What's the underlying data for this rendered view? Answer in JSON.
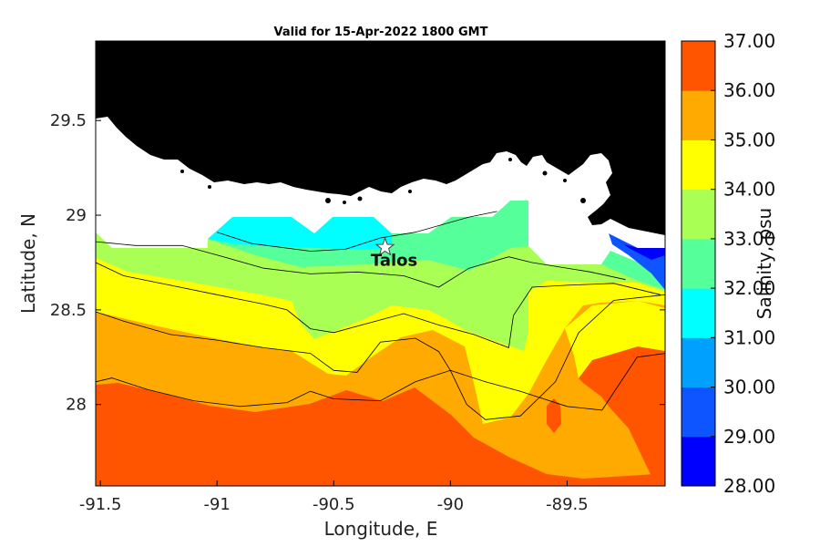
{
  "chart_data": {
    "type": "heatmap",
    "title": "Valid for 15-Apr-2022 1800 GMT",
    "xlabel": "Longitude, E",
    "ylabel": "Latitude, N",
    "xlim": [
      -91.52,
      -89.08
    ],
    "ylim": [
      27.57,
      29.92
    ],
    "x_ticks": [
      -91.5,
      -91,
      -90.5,
      -90,
      -89.5
    ],
    "x_tick_labels": [
      "-91.5",
      "-91",
      "-90.5",
      "-90",
      "-89.5"
    ],
    "y_ticks": [
      28,
      28.5,
      29,
      29.5
    ],
    "y_tick_labels": [
      "28",
      "28.5",
      "29",
      "29.5"
    ],
    "colorbar": {
      "label": "Salinity, psu",
      "min": 28,
      "max": 37,
      "tick_labels": [
        "37.00",
        "36.00",
        "35.00",
        "34.00",
        "33.00",
        "32.00",
        "31.00",
        "30.00",
        "29.00",
        "28.00"
      ],
      "colors": [
        "#0000ff",
        "#0f55ff",
        "#00a0ff",
        "#00ffff",
        "#55ff99",
        "#aaff55",
        "#ffff00",
        "#ffaa00",
        "#ff5500"
      ]
    },
    "land_color": "#000000",
    "annotation": {
      "label": "Talos",
      "marker": "star",
      "lon": -90.28,
      "lat": 28.83
    },
    "contour_levels": [
      {
        "level": 36,
        "points": [
          [
            -91.52,
            28.12
          ],
          [
            -91.45,
            28.14
          ],
          [
            -91.3,
            28.08
          ],
          [
            -91.1,
            28.02
          ],
          [
            -90.9,
            27.99
          ],
          [
            -90.7,
            28.01
          ],
          [
            -90.6,
            28.07
          ],
          [
            -90.5,
            28.03
          ],
          [
            -90.3,
            28.02
          ],
          [
            -90.15,
            28.12
          ],
          [
            -90.0,
            28.18
          ],
          [
            -89.85,
            28.12
          ],
          [
            -89.7,
            28.07
          ],
          [
            -89.5,
            27.99
          ],
          [
            -89.35,
            27.97
          ],
          [
            -89.2,
            28.25
          ],
          [
            -89.08,
            28.27
          ]
        ]
      },
      {
        "level": 35,
        "points": [
          [
            -91.52,
            28.49
          ],
          [
            -91.4,
            28.44
          ],
          [
            -91.2,
            28.37
          ],
          [
            -91.0,
            28.34
          ],
          [
            -90.8,
            28.3
          ],
          [
            -90.6,
            28.27
          ],
          [
            -90.5,
            28.18
          ],
          [
            -90.4,
            28.17
          ],
          [
            -90.3,
            28.33
          ],
          [
            -90.15,
            28.35
          ],
          [
            -90.05,
            28.28
          ],
          [
            -90.0,
            28.18
          ],
          [
            -89.93,
            28.0
          ],
          [
            -89.85,
            27.92
          ],
          [
            -89.7,
            27.94
          ],
          [
            -89.55,
            28.12
          ],
          [
            -89.45,
            28.38
          ],
          [
            -89.3,
            28.55
          ],
          [
            -89.08,
            28.58
          ]
        ]
      },
      {
        "level": 34,
        "points": [
          [
            -91.52,
            28.75
          ],
          [
            -91.4,
            28.68
          ],
          [
            -91.2,
            28.63
          ],
          [
            -91.0,
            28.58
          ],
          [
            -90.8,
            28.53
          ],
          [
            -90.7,
            28.5
          ],
          [
            -90.6,
            28.4
          ],
          [
            -90.5,
            28.38
          ],
          [
            -90.35,
            28.43
          ],
          [
            -90.2,
            28.48
          ],
          [
            -90.05,
            28.42
          ],
          [
            -89.9,
            28.37
          ],
          [
            -89.75,
            28.3
          ],
          [
            -89.73,
            28.47
          ],
          [
            -89.65,
            28.62
          ],
          [
            -89.5,
            28.63
          ],
          [
            -89.3,
            28.64
          ],
          [
            -89.1,
            28.58
          ]
        ]
      },
      {
        "level": 33,
        "points": [
          [
            -91.52,
            28.86
          ],
          [
            -91.35,
            28.84
          ],
          [
            -91.15,
            28.84
          ],
          [
            -91.0,
            28.79
          ],
          [
            -90.8,
            28.72
          ],
          [
            -90.6,
            28.69
          ],
          [
            -90.4,
            28.7
          ],
          [
            -90.2,
            28.68
          ],
          [
            -90.05,
            28.62
          ],
          [
            -89.92,
            28.72
          ],
          [
            -89.75,
            28.78
          ],
          [
            -89.65,
            28.75
          ],
          [
            -89.4,
            28.7
          ],
          [
            -89.25,
            28.66
          ]
        ]
      },
      {
        "level": 32,
        "points": [
          [
            -91.0,
            28.91
          ],
          [
            -90.85,
            28.85
          ],
          [
            -90.6,
            28.81
          ],
          [
            -90.45,
            28.82
          ],
          [
            -90.3,
            28.88
          ],
          [
            -90.15,
            28.91
          ],
          [
            -89.92,
            28.99
          ],
          [
            -89.8,
            29.02
          ]
        ]
      }
    ]
  }
}
